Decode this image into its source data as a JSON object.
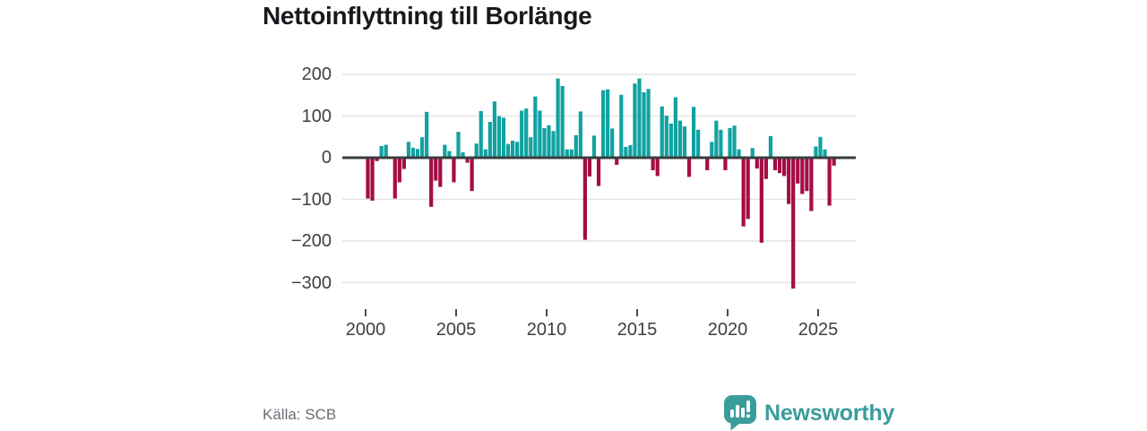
{
  "title": "Nettoinflyttning till Borlänge",
  "source": "Källa: SCB",
  "brand": {
    "name": "Newsworthy"
  },
  "colors": {
    "positive": "#10a2a1",
    "negative": "#a50d45",
    "grid": "#e4e4e4",
    "zero_line": "#3a3d40",
    "tick_mark": "#4a4d52",
    "axis_text": "#3d4045",
    "title_text": "#17191d",
    "source_text": "#696d75",
    "brand_teal": "#3a9d9c",
    "background": "#ffffff"
  },
  "chart_data": {
    "type": "bar",
    "title": "Nettoinflyttning till Borlänge",
    "frequency": "quarterly",
    "start_year": 2000,
    "end_year": 2025,
    "xlabel": "",
    "ylabel": "",
    "grid": "horizontal",
    "legend": "none",
    "ylim": [
      -353,
      228
    ],
    "y_ticks": [
      200,
      100,
      0,
      -100,
      -200,
      -300
    ],
    "y_tick_labels": [
      "200",
      "100",
      "0",
      "−100",
      "−200",
      "−300"
    ],
    "x_tick_years": [
      2000,
      2005,
      2010,
      2015,
      2020,
      2025
    ],
    "x_tick_labels": [
      "2000",
      "2005",
      "2010",
      "2015",
      "2020",
      "2025"
    ],
    "values": [
      -98,
      -103,
      -8,
      28,
      31,
      2,
      -98,
      -59,
      -27,
      38,
      24,
      21,
      49,
      110,
      -118,
      -55,
      -70,
      31,
      16,
      -59,
      62,
      13,
      -12,
      -80,
      34,
      112,
      20,
      86,
      135,
      100,
      96,
      33,
      41,
      38,
      113,
      118,
      49,
      147,
      113,
      71,
      78,
      64,
      190,
      172,
      20,
      20,
      54,
      111,
      -197,
      -45,
      53,
      -68,
      162,
      164,
      70,
      -17,
      151,
      26,
      30,
      178,
      190,
      157,
      165,
      -30,
      -44,
      123,
      101,
      82,
      145,
      89,
      75,
      -46,
      122,
      67,
      0,
      -30,
      38,
      89,
      67,
      -30,
      71,
      77,
      20,
      -165,
      -147,
      23,
      -26,
      -204,
      -51,
      52,
      -30,
      -37,
      -44,
      -111,
      -314,
      -62,
      -87,
      -80,
      -128,
      27,
      50,
      20,
      -115,
      -19
    ]
  }
}
